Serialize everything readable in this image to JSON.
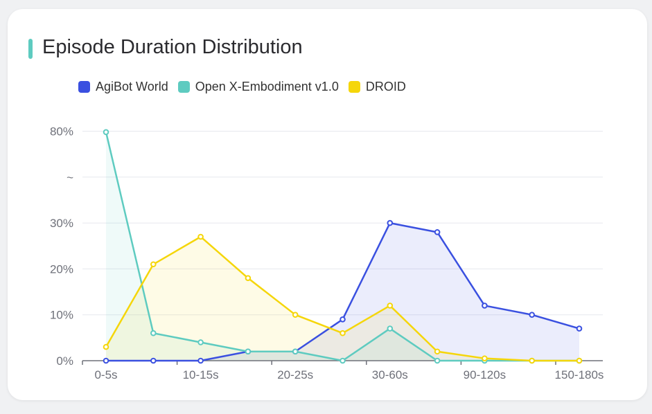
{
  "chart_data": {
    "type": "line",
    "title": "Episode Duration Distribution",
    "x_tick_labels": [
      "0-5s",
      "10-15s",
      "20-25s",
      "30-60s",
      "90-120s",
      "150-180s"
    ],
    "x_count": 11,
    "y_tick_labels": [
      "0%",
      "10%",
      "20%",
      "30%",
      "~",
      "80%"
    ],
    "y_axis": {
      "broken": true,
      "lower_range": [
        0,
        30
      ],
      "upper_value": 80,
      "unit": "%"
    },
    "grid": true,
    "legend_placement": "top-left",
    "series": [
      {
        "name": "AgiBot World",
        "color": "#3a50e0",
        "values": [
          0,
          0,
          0,
          2,
          2,
          9,
          30,
          28,
          12,
          10,
          7
        ]
      },
      {
        "name": "Open X-Embodiment v1.0",
        "color": "#5ecbc0",
        "values": [
          79.5,
          6,
          4,
          2,
          2,
          0,
          7,
          0,
          0,
          0,
          0
        ]
      },
      {
        "name": "DROID",
        "color": "#f5d60a",
        "values": [
          3,
          21,
          27,
          18,
          10,
          6,
          12,
          2,
          0.5,
          0,
          0
        ]
      }
    ]
  }
}
